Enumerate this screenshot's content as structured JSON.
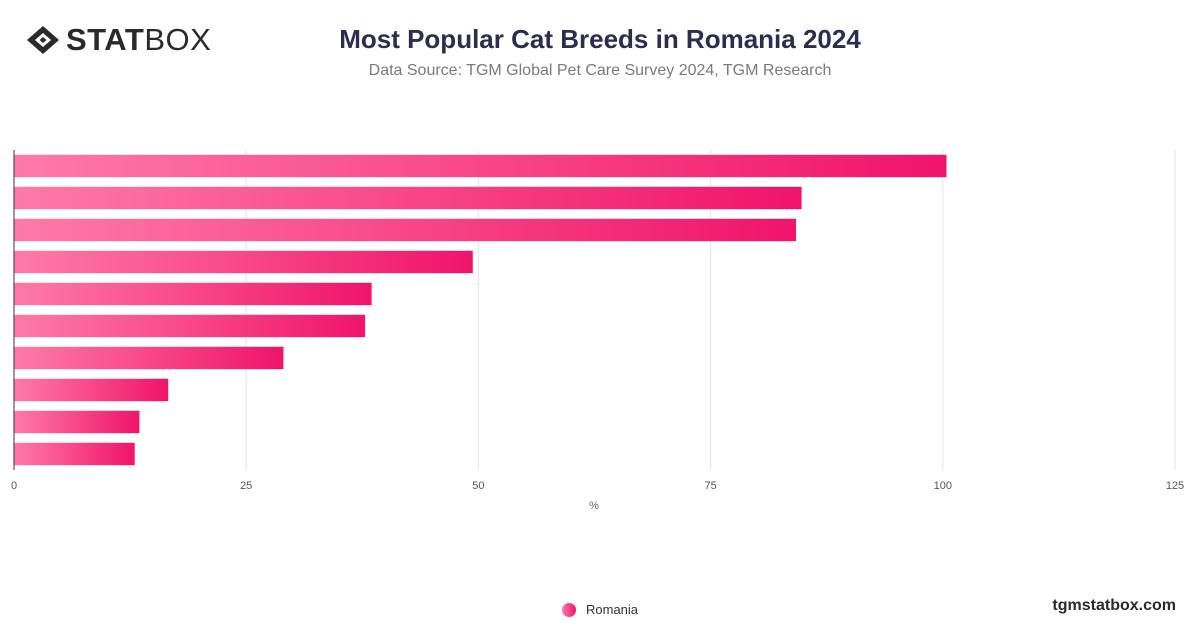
{
  "header": {
    "logo_stat": "STAT",
    "logo_box": "BOX",
    "title": "Most Popular Cat Breeds in Romania 2024",
    "subtitle": "Data Source: TGM Global Pet Care Survey 2024, TGM Research"
  },
  "footer": {
    "brand": "tgmstatbox.com"
  },
  "colors": {
    "bar_start": "#ff7aa8",
    "bar_end": "#f0146a",
    "grid": "#e3e3e3",
    "axis": "#333333"
  },
  "chart_data": {
    "type": "bar",
    "orientation": "horizontal",
    "title": "Most Popular Cat Breeds in Romania 2024",
    "xlabel": "%",
    "ylabel": "",
    "xlim": [
      0,
      125
    ],
    "xticks": [
      0,
      25,
      50,
      75,
      100,
      125
    ],
    "grid": true,
    "legend": "bottom-center",
    "series": [
      {
        "name": "Romania",
        "values": [
          100.4,
          84.8,
          84.2,
          49.4,
          38.5,
          37.8,
          29,
          16.6,
          13.5,
          13
        ]
      }
    ]
  }
}
